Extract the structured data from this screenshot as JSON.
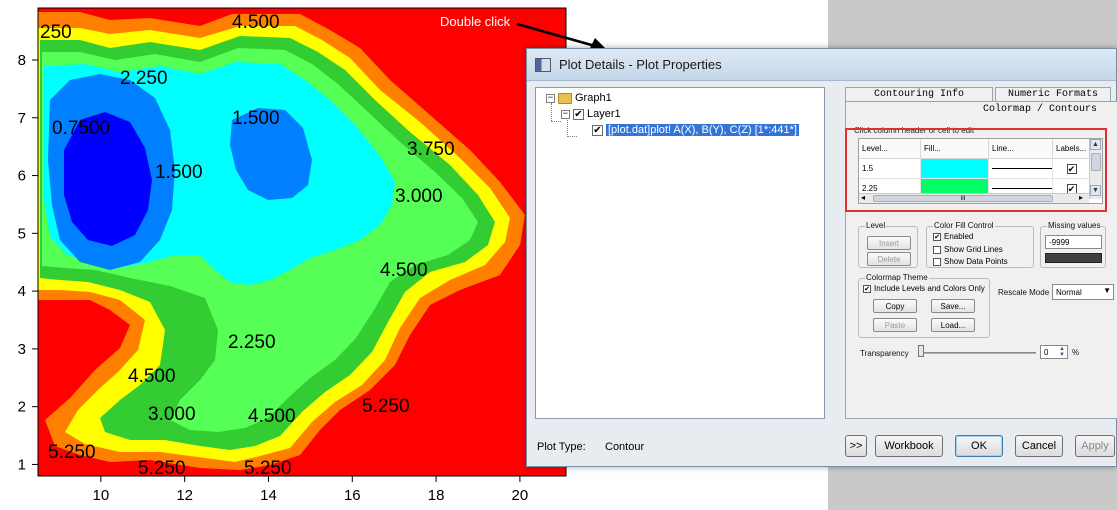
{
  "annotation": {
    "text": "Double click"
  },
  "plot": {
    "x_ticks": [
      "10",
      "12",
      "14",
      "16",
      "18",
      "20"
    ],
    "y_ticks": [
      "1",
      "2",
      "3",
      "4",
      "5",
      "6",
      "7",
      "8"
    ],
    "contour_labels": [
      "250",
      "4.500",
      "2.250",
      "0.7500",
      "1.500",
      "1.500",
      "3.750",
      "3.000",
      "4.500",
      "2.250",
      "4.500",
      "3.000",
      "4.500",
      "5.250",
      "5.250",
      "5.250",
      "5.250"
    ],
    "colors": {
      "red": "#ff0000",
      "orange": "#ff8000",
      "yellow": "#ffff00",
      "green": "#33cc33",
      "lightgreen": "#55ff55",
      "cyan": "#00ffff",
      "blue": "#0080ff",
      "darkblue": "#0000ff"
    }
  },
  "dialog": {
    "title": "Plot Details - Plot Properties",
    "tree": {
      "graph": "Graph1",
      "layer": "Layer1",
      "plot": "[plot.dat]plot! A(X), B(Y), C(Z) [1*:441*]"
    },
    "tabs": [
      "Contouring Info",
      "Numeric Formats"
    ],
    "pane_title": "Colormap / Contours",
    "hint": "Click column header or cell to edit",
    "grid": {
      "headers": [
        "Level...",
        "Fill...",
        "Line...",
        "Labels..."
      ],
      "rows": [
        {
          "level": "1.5",
          "fill": "#00ffff",
          "label_checked": "✔"
        },
        {
          "level": "2.25",
          "fill": "#00ff66",
          "label_checked": "✔"
        }
      ],
      "hscroll_dots": "III"
    },
    "level_group": {
      "title": "Level",
      "insert": "Insert",
      "delete": "Delete"
    },
    "color_fill": {
      "title": "Color Fill Control",
      "enabled": "Enabled",
      "enabled_checked": "✔",
      "show_grid_lines": "Show Grid Lines",
      "show_data_points": "Show Data Points"
    },
    "missing_values": {
      "title": "Missing values",
      "value": "-9999"
    },
    "colormap_theme": {
      "title": "Colormap Theme",
      "include": "Include Levels and Colors Only",
      "include_checked": "✔",
      "copy": "Copy",
      "save": "Save...",
      "paste": "Paste",
      "load": "Load..."
    },
    "rescale": {
      "label": "Rescale Mode",
      "value": "Normal"
    },
    "transparency": {
      "label": "Transparency",
      "value": "0",
      "unit": "%"
    },
    "plot_type_label": "Plot Type:",
    "plot_type_value": "Contour",
    "buttons": {
      "more": ">>",
      "workbook": "Workbook",
      "ok": "OK",
      "cancel": "Cancel",
      "apply": "Apply"
    }
  }
}
